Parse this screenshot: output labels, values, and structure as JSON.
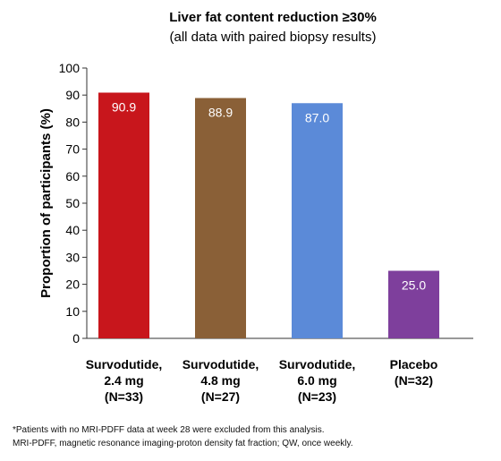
{
  "chart_data": {
    "type": "bar",
    "title": "Liver fat content reduction ≥30%",
    "subtitle": "(all data with paired biopsy results)",
    "ylabel": "Proportion of participants (%)",
    "xlabel": "",
    "ylim": [
      0,
      100
    ],
    "yticks": [
      0,
      10,
      20,
      30,
      40,
      50,
      60,
      70,
      80,
      90,
      100
    ],
    "grid": false,
    "categories": [
      [
        "Survodutide,",
        "2.4 mg",
        "(N=33)"
      ],
      [
        "Survodutide,",
        "4.8 mg",
        "(N=27)"
      ],
      [
        "Survodutide,",
        "6.0 mg",
        "(N=23)"
      ],
      [
        "Placebo",
        "(N=32)"
      ]
    ],
    "values": [
      90.9,
      88.9,
      87.0,
      25.0
    ],
    "value_labels": [
      "90.9",
      "88.9",
      "87.0",
      "25.0"
    ],
    "colors": [
      "#c8161c",
      "#8a6037",
      "#5b8ad8",
      "#7e3f9c"
    ]
  },
  "footnotes": [
    "*Patients with no MRI-PDFF data at week 28 were excluded from this analysis.",
    "MRI-PDFF, magnetic resonance imaging-proton density fat fraction; QW, once weekly."
  ]
}
